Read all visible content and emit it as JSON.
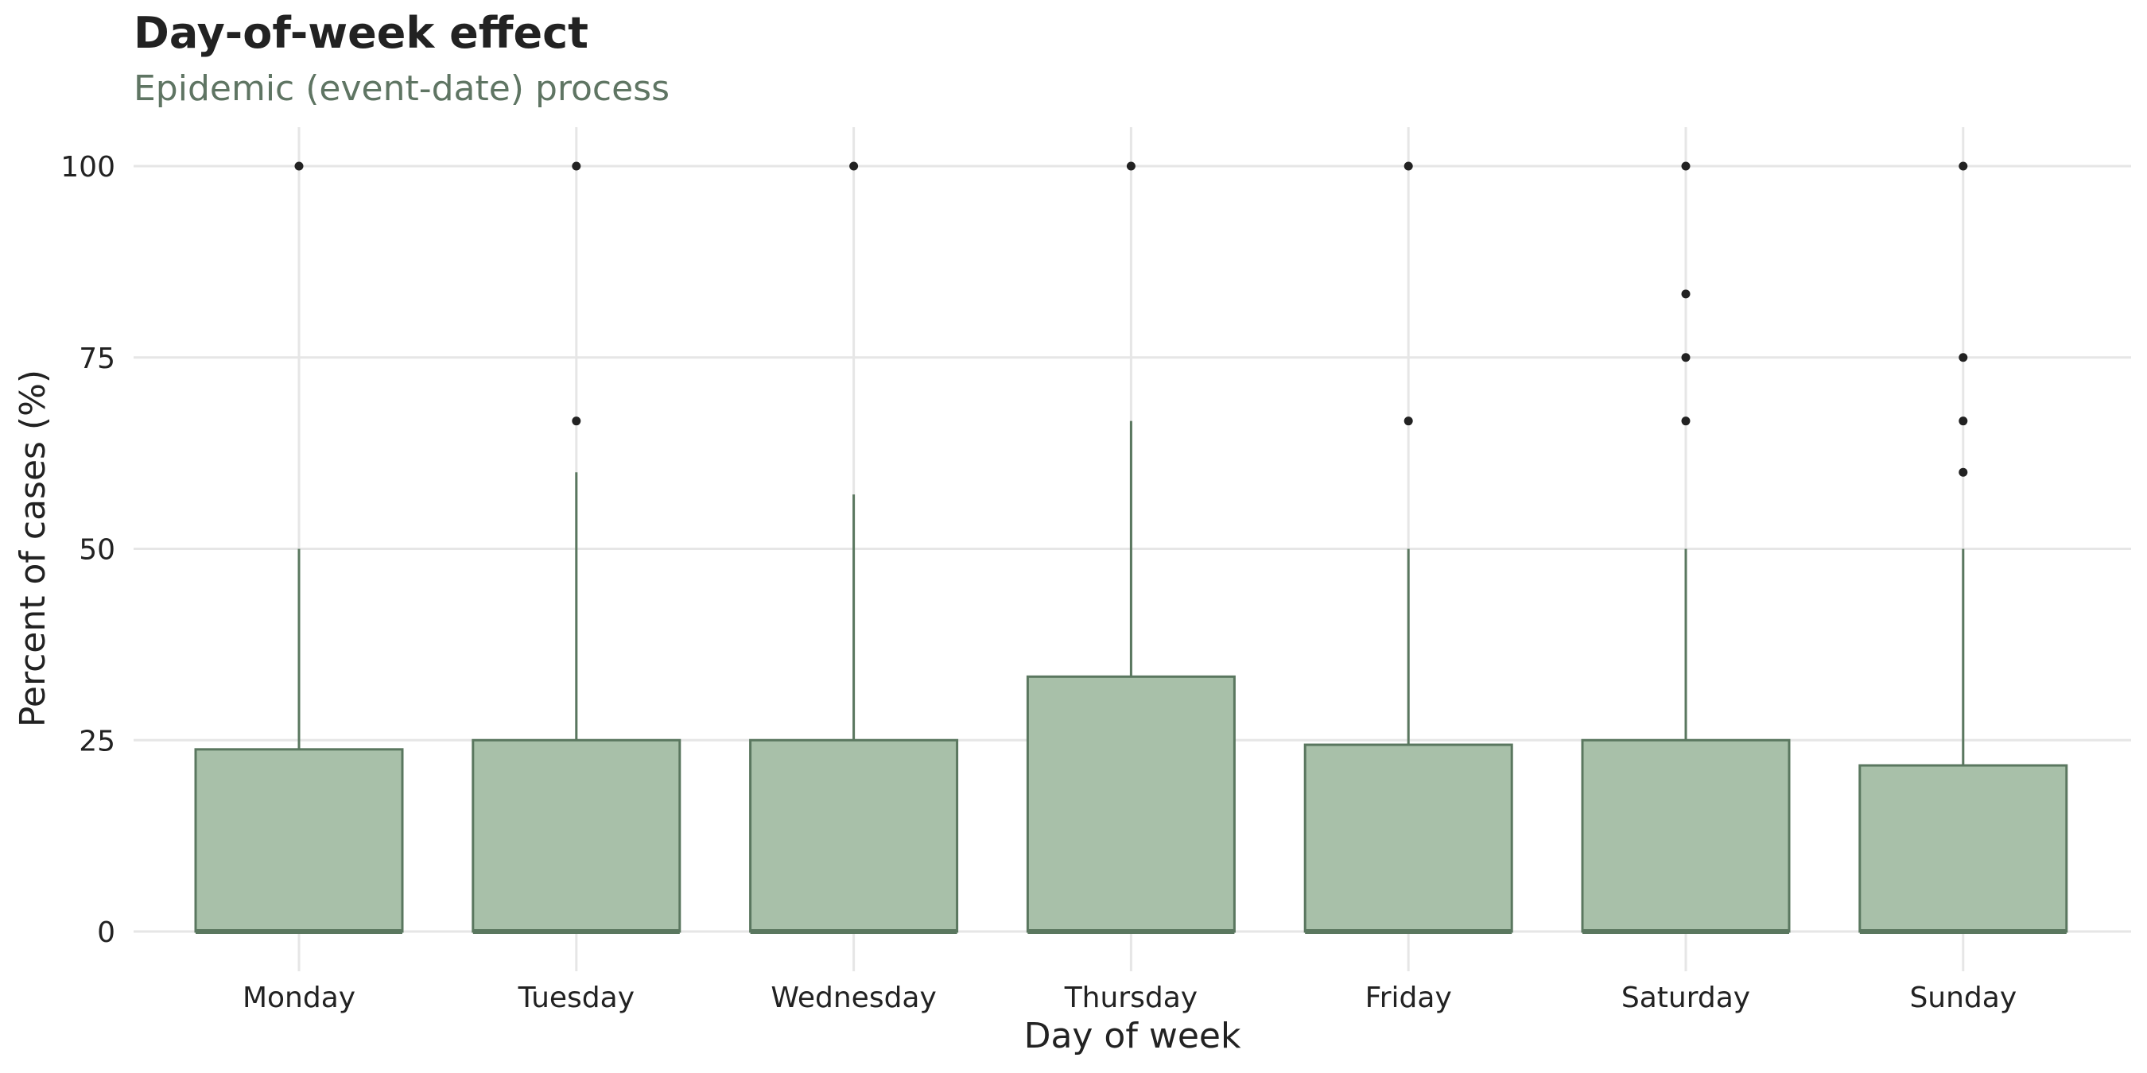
{
  "chart_data": {
    "type": "box",
    "title": "Day-of-week effect",
    "subtitle": "Epidemic (event-date) process",
    "xlabel": "Day of week",
    "ylabel": "Percent of cases (%)",
    "ylim": [
      -5,
      105
    ],
    "yticks": [
      0,
      25,
      50,
      75,
      100
    ],
    "grid": true,
    "categories": [
      "Monday",
      "Tuesday",
      "Wednesday",
      "Thursday",
      "Friday",
      "Saturday",
      "Sunday"
    ],
    "boxes": [
      {
        "q1": 0,
        "median": 0,
        "q3": 23.8,
        "whisker_low": 0,
        "whisker_high": 50,
        "outliers": [
          100
        ]
      },
      {
        "q1": 0,
        "median": 0,
        "q3": 25,
        "whisker_low": 0,
        "whisker_high": 60,
        "outliers": [
          66.7,
          100
        ]
      },
      {
        "q1": 0,
        "median": 0,
        "q3": 25,
        "whisker_low": 0,
        "whisker_high": 57.1,
        "outliers": [
          100
        ]
      },
      {
        "q1": 0,
        "median": 0,
        "q3": 33.3,
        "whisker_low": 0,
        "whisker_high": 66.7,
        "outliers": [
          100
        ]
      },
      {
        "q1": 0,
        "median": 0,
        "q3": 24.4,
        "whisker_low": 0,
        "whisker_high": 50,
        "outliers": [
          66.7,
          100
        ]
      },
      {
        "q1": 0,
        "median": 0,
        "q3": 25,
        "whisker_low": 0,
        "whisker_high": 50,
        "outliers": [
          66.7,
          75,
          83.3,
          100
        ]
      },
      {
        "q1": 0,
        "median": 0,
        "q3": 21.7,
        "whisker_low": 0,
        "whisker_high": 50,
        "outliers": [
          60,
          66.7,
          75,
          100
        ]
      }
    ]
  },
  "colors": {
    "box_fill": "#a8c0a9",
    "box_stroke": "#5a775f",
    "outlier": "#222222",
    "grid": "#e6e6e6",
    "subtitle": "#5f7563",
    "text": "#222222"
  }
}
